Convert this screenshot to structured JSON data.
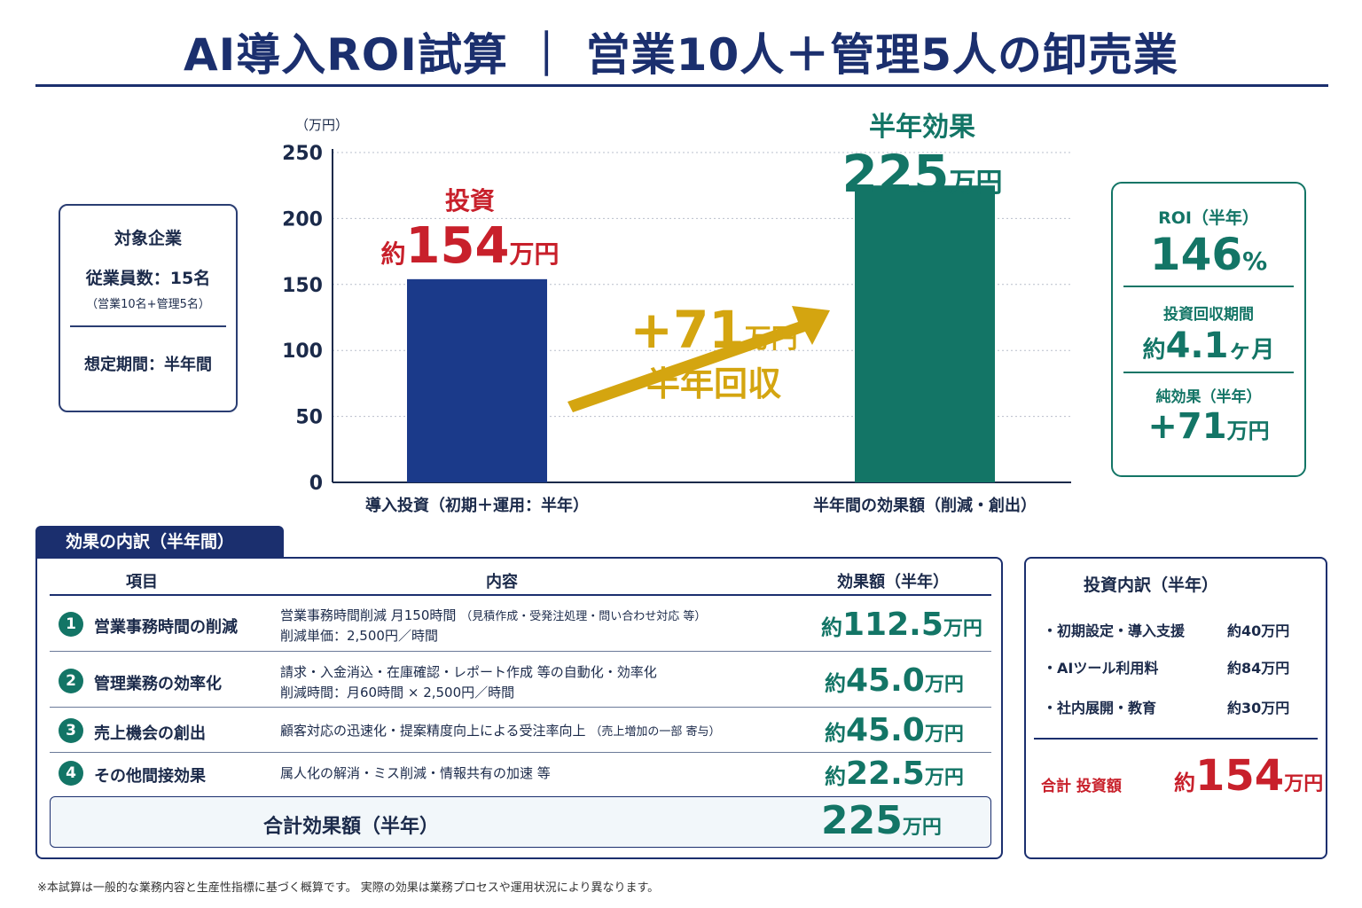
{
  "title": "AI導入ROI試算 ｜ 営業10人＋管理5人の卸売業",
  "info": {
    "heading": "対象企業",
    "employees": "従業員数：15名",
    "employees_detail": "（営業10名+管理5名）",
    "period": "想定期間：半年間"
  },
  "chart_data": {
    "type": "bar",
    "unit_label": "（万円）",
    "categories": [
      "導入投資（初期＋運用：半年）",
      "半年間の効果額（削減・創出）"
    ],
    "values": [
      154,
      225
    ],
    "ylim": [
      0,
      250
    ],
    "yticks": [
      0,
      50,
      100,
      150,
      200,
      250
    ],
    "grid": true,
    "colors": [
      "#1b3a8a",
      "#137566"
    ],
    "annotations": {
      "invest_head": "投資",
      "invest_pre": "約",
      "invest_value": "154",
      "invest_unit": "万円",
      "effect_head": "半年効果",
      "effect_value": "225",
      "effect_unit": "万円",
      "gain_value": "+71",
      "gain_unit": "万円",
      "gain_note": "半年回収"
    }
  },
  "roi": {
    "roi_label": "ROI（半年）",
    "roi_value": "146",
    "roi_unit": "%",
    "payback_label": "投資回収期間",
    "payback_pre": "約",
    "payback_value": "4.1",
    "payback_unit": "ヶ月",
    "net_label": "純効果（半年）",
    "net_value": "+71",
    "net_unit": "万円"
  },
  "breakdown": {
    "tab": "効果の内訳（半年間）",
    "headers": [
      "項目",
      "内容",
      "効果額（半年）"
    ],
    "rows": [
      {
        "no": "1",
        "item": "営業事務時間の削減",
        "desc1": "営業事務時間削減 月150時間",
        "desc1_note": "（見積作成・受発注処理・問い合わせ対応 等）",
        "desc2": "削減単価：2,500円／時間",
        "pre": "約",
        "value": "112.5",
        "unit": "万円"
      },
      {
        "no": "2",
        "item": "管理業務の効率化",
        "desc1": "請求・入金消込・在庫確認・レポート作成 等の自動化・効率化",
        "desc1_note": "",
        "desc2": "削減時間：月60時間 × 2,500円／時間",
        "pre": "約",
        "value": "45.0",
        "unit": "万円"
      },
      {
        "no": "3",
        "item": "売上機会の創出",
        "desc1": "顧客対応の迅速化・提案精度向上による受注率向上",
        "desc1_note": "（売上増加の一部 寄与）",
        "desc2": "",
        "pre": "約",
        "value": "45.0",
        "unit": "万円"
      },
      {
        "no": "4",
        "item": "その他間接効果",
        "desc1": "属人化の解消・ミス削減・情報共有の加速 等",
        "desc1_note": "",
        "desc2": "",
        "pre": "約",
        "value": "22.5",
        "unit": "万円"
      }
    ],
    "total_label": "合計効果額（半年）",
    "total_value": "225",
    "total_unit": "万円"
  },
  "investment": {
    "heading": "投資内訳（半年）",
    "items": [
      {
        "label": "・初期設定・導入支援",
        "value": "約40万円"
      },
      {
        "label": "・AIツール利用料",
        "value": "約84万円"
      },
      {
        "label": "・社内展開・教育",
        "value": "約30万円"
      }
    ],
    "total_label": "合計 投資額",
    "total_pre": "約",
    "total_value": "154",
    "total_unit": "万円"
  },
  "footnote": "※本試算は一般的な業務内容と生産性指標に基づく概算です。 実際の効果は業務プロセスや運用状況により異なります。"
}
